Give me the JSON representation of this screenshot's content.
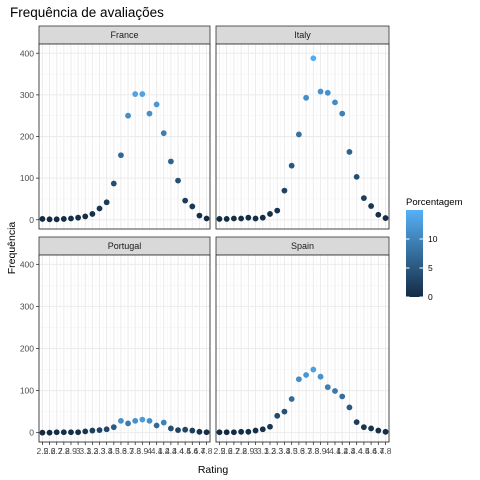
{
  "chart_data": {
    "type": "scatter",
    "title": "Frequência de avaliações",
    "xlabel": "Rating",
    "ylabel": "Frequência",
    "ylim": [
      0,
      400
    ],
    "yticks": [
      0,
      100,
      200,
      300,
      400
    ],
    "x": [
      2.5,
      2.6,
      2.7,
      2.8,
      2.9,
      3.0,
      3.1,
      3.2,
      3.3,
      3.4,
      3.5,
      3.6,
      3.7,
      3.8,
      3.9,
      4.0,
      4.1,
      4.2,
      4.3,
      4.4,
      4.5,
      4.6,
      4.7,
      4.8
    ],
    "xtick_labels": [
      "2.5",
      "2.6",
      "2.7",
      "2.8",
      "2.9",
      "3",
      "3.1",
      "3.2",
      "3.3",
      "3.4",
      "3.5",
      "3.6",
      "3.7",
      "3.8",
      "3.9",
      "4",
      "4.1",
      "4.2",
      "4.3",
      "4.4",
      "4.5",
      "4.6",
      "4.7",
      "4.8"
    ],
    "grid": true,
    "facets": [
      {
        "name": "France",
        "values": [
          2,
          1,
          1,
          2,
          3,
          5,
          8,
          14,
          27,
          42,
          87,
          155,
          250,
          302,
          302,
          255,
          277,
          208,
          140,
          94,
          46,
          32,
          10,
          3
        ]
      },
      {
        "name": "Italy",
        "values": [
          2,
          2,
          3,
          3,
          5,
          3,
          5,
          14,
          22,
          70,
          130,
          205,
          293,
          388,
          308,
          305,
          282,
          255,
          163,
          103,
          52,
          33,
          12,
          4
        ]
      },
      {
        "name": "Portugal",
        "values": [
          0,
          0,
          1,
          1,
          1,
          1,
          3,
          5,
          6,
          8,
          13,
          28,
          22,
          28,
          31,
          28,
          17,
          24,
          10,
          6,
          7,
          5,
          2,
          1
        ]
      },
      {
        "name": "Spain",
        "values": [
          1,
          1,
          1,
          2,
          2,
          5,
          8,
          14,
          40,
          50,
          80,
          127,
          137,
          150,
          133,
          108,
          99,
          86,
          60,
          25,
          13,
          10,
          5,
          2
        ]
      }
    ],
    "legend": {
      "title": "Porcentagem",
      "position": "right",
      "ticks": [
        0,
        5,
        10
      ],
      "range": [
        0,
        15
      ],
      "low_color": "#132B43",
      "high_color": "#56B1F7"
    }
  },
  "colors": {
    "panel_background": "#ffffff",
    "panel_border": "#333333",
    "strip_background": "#d9d9d9",
    "grid_major": "#ebebeb",
    "grid_minor": "#f5f5f5"
  }
}
